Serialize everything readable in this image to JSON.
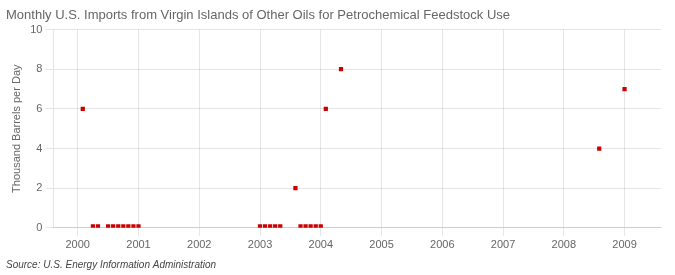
{
  "chart_data": {
    "type": "scatter",
    "title": "Monthly U.S. Imports from Virgin Islands of Other Oils for Petrochemical Feedstock Use",
    "ylabel": "Thousand Barrels per Day",
    "annotations": [
      "Source: U.S. Energy Information Administration"
    ],
    "x": [
      2000.083,
      2000.25,
      2000.333,
      2000.5,
      2000.583,
      2000.667,
      2000.75,
      2000.833,
      2000.917,
      2001.0,
      2003.0,
      2003.083,
      2003.167,
      2003.25,
      2003.333,
      2003.583,
      2003.667,
      2003.75,
      2003.833,
      2003.917,
      2004.0,
      2004.083,
      2004.333,
      2008.583,
      2009.0
    ],
    "values": [
      6.0,
      0.07,
      0.07,
      0.07,
      0.07,
      0.07,
      0.07,
      0.07,
      0.07,
      0.07,
      0.07,
      0.07,
      0.07,
      0.07,
      0.07,
      2.0,
      0.07,
      0.07,
      0.07,
      0.07,
      0.07,
      6.0,
      8.0,
      4.0,
      7.0
    ],
    "color": "#cc0000",
    "marker": "square",
    "xlim": [
      1999.6,
      2009.6
    ],
    "xticks": [
      2000,
      2001,
      2002,
      2003,
      2004,
      2005,
      2006,
      2007,
      2008,
      2009
    ],
    "ylim": [
      0,
      10
    ],
    "yticks": [
      0,
      2,
      4,
      6,
      8,
      10
    ],
    "grid": true
  }
}
